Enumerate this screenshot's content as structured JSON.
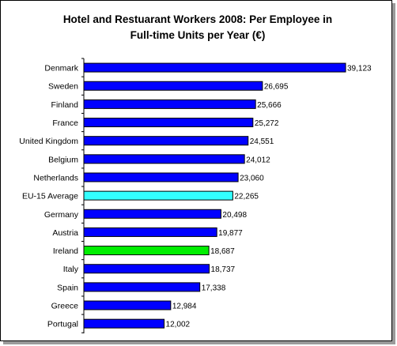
{
  "chart_data": {
    "type": "bar",
    "orientation": "horizontal",
    "title": [
      "Hotel and Restuarant Workers 2008:  Per Employee in",
      "Full-time Units per Year  (€)"
    ],
    "categories": [
      "Denmark",
      "Sweden",
      "Finland",
      "France",
      "United Kingdom",
      "Belgium",
      "Netherlands",
      "EU-15 Average",
      "Germany",
      "Austria",
      "Ireland",
      "Italy",
      "Spain",
      "Greece",
      "Portugal"
    ],
    "values": [
      39123,
      26695,
      25666,
      25272,
      24551,
      24012,
      23060,
      22265,
      20498,
      19877,
      18687,
      18737,
      17338,
      12984,
      12002
    ],
    "value_labels": [
      "39,123",
      "26,695",
      "25,666",
      "25,272",
      "24,551",
      "24,012",
      "23,060",
      "22,265",
      "20,498",
      "19,877",
      "18,687",
      "18,737",
      "17,338",
      "12,984",
      "12,002"
    ],
    "xlim": [
      0,
      40000
    ],
    "grid": false,
    "legend": "none",
    "colors": {
      "default": "#0000ff",
      "EU-15 Average": "#33ffff",
      "Ireland": "#00ee00",
      "bar_outline": "#000000",
      "frame_shadow": "#9a9a9a"
    }
  }
}
